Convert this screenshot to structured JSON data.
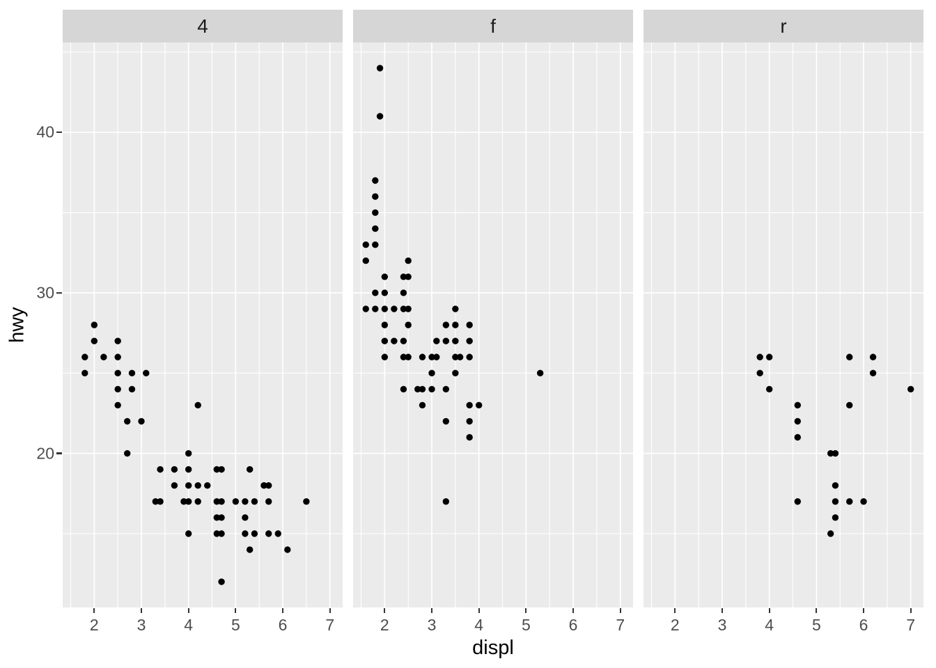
{
  "chart_data": {
    "type": "scatter",
    "title": "",
    "xlabel": "displ",
    "ylabel": "hwy",
    "facet_variable_values": [
      "4",
      "f",
      "r"
    ],
    "x_ticks": [
      2,
      3,
      4,
      5,
      6,
      7
    ],
    "y_ticks": [
      20,
      30,
      40
    ],
    "x_minor_ticks": [
      1.5,
      2.5,
      3.5,
      4.5,
      5.5,
      6.5
    ],
    "y_minor_ticks": [
      15,
      25,
      35,
      45
    ],
    "xlim": [
      1.33,
      7.27
    ],
    "ylim": [
      10.4,
      45.6
    ],
    "grid": true,
    "legend_position": "none",
    "panels": [
      {
        "label": "4",
        "points": [
          [
            1.8,
            26
          ],
          [
            1.8,
            25
          ],
          [
            2.0,
            28
          ],
          [
            2.0,
            27
          ],
          [
            2.2,
            26
          ],
          [
            2.5,
            27
          ],
          [
            2.5,
            26
          ],
          [
            2.5,
            25
          ],
          [
            2.5,
            24
          ],
          [
            2.5,
            23
          ],
          [
            2.7,
            22
          ],
          [
            2.7,
            20
          ],
          [
            2.8,
            25
          ],
          [
            2.8,
            24
          ],
          [
            3.0,
            22
          ],
          [
            3.1,
            25
          ],
          [
            3.3,
            17
          ],
          [
            3.4,
            19
          ],
          [
            3.4,
            17
          ],
          [
            3.7,
            19
          ],
          [
            3.7,
            18
          ],
          [
            3.9,
            17
          ],
          [
            4.0,
            20
          ],
          [
            4.0,
            19
          ],
          [
            4.0,
            18
          ],
          [
            4.0,
            17
          ],
          [
            4.0,
            15
          ],
          [
            4.2,
            23
          ],
          [
            4.2,
            18
          ],
          [
            4.2,
            17
          ],
          [
            4.4,
            18
          ],
          [
            4.6,
            19
          ],
          [
            4.6,
            17
          ],
          [
            4.6,
            16
          ],
          [
            4.6,
            15
          ],
          [
            4.7,
            19
          ],
          [
            4.7,
            17
          ],
          [
            4.7,
            16
          ],
          [
            4.7,
            15
          ],
          [
            4.7,
            12
          ],
          [
            5.0,
            17
          ],
          [
            5.2,
            17
          ],
          [
            5.2,
            16
          ],
          [
            5.2,
            15
          ],
          [
            5.3,
            19
          ],
          [
            5.3,
            14
          ],
          [
            5.4,
            17
          ],
          [
            5.4,
            15
          ],
          [
            5.6,
            18
          ],
          [
            5.7,
            18
          ],
          [
            5.7,
            17
          ],
          [
            5.7,
            15
          ],
          [
            5.9,
            15
          ],
          [
            6.1,
            14
          ],
          [
            6.5,
            17
          ]
        ]
      },
      {
        "label": "f",
        "points": [
          [
            1.6,
            33
          ],
          [
            1.6,
            32
          ],
          [
            1.6,
            29
          ],
          [
            1.8,
            37
          ],
          [
            1.8,
            36
          ],
          [
            1.8,
            35
          ],
          [
            1.8,
            34
          ],
          [
            1.8,
            33
          ],
          [
            1.8,
            30
          ],
          [
            1.8,
            29
          ],
          [
            1.9,
            44
          ],
          [
            1.9,
            41
          ],
          [
            2.0,
            31
          ],
          [
            2.0,
            30
          ],
          [
            2.0,
            29
          ],
          [
            2.0,
            28
          ],
          [
            2.0,
            27
          ],
          [
            2.0,
            26
          ],
          [
            2.2,
            29
          ],
          [
            2.2,
            27
          ],
          [
            2.4,
            31
          ],
          [
            2.4,
            30
          ],
          [
            2.4,
            29
          ],
          [
            2.4,
            27
          ],
          [
            2.4,
            26
          ],
          [
            2.4,
            24
          ],
          [
            2.5,
            32
          ],
          [
            2.5,
            31
          ],
          [
            2.5,
            29
          ],
          [
            2.5,
            28
          ],
          [
            2.5,
            26
          ],
          [
            2.7,
            24
          ],
          [
            2.8,
            26
          ],
          [
            2.8,
            24
          ],
          [
            2.8,
            23
          ],
          [
            3.0,
            26
          ],
          [
            3.0,
            25
          ],
          [
            3.0,
            24
          ],
          [
            3.1,
            27
          ],
          [
            3.1,
            26
          ],
          [
            3.3,
            28
          ],
          [
            3.3,
            27
          ],
          [
            3.3,
            24
          ],
          [
            3.3,
            22
          ],
          [
            3.3,
            17
          ],
          [
            3.5,
            29
          ],
          [
            3.5,
            28
          ],
          [
            3.5,
            27
          ],
          [
            3.5,
            26
          ],
          [
            3.5,
            25
          ],
          [
            3.6,
            26
          ],
          [
            3.8,
            28
          ],
          [
            3.8,
            27
          ],
          [
            3.8,
            26
          ],
          [
            3.8,
            23
          ],
          [
            3.8,
            22
          ],
          [
            3.8,
            21
          ],
          [
            4.0,
            23
          ],
          [
            5.3,
            25
          ]
        ]
      },
      {
        "label": "r",
        "points": [
          [
            3.8,
            26
          ],
          [
            3.8,
            25
          ],
          [
            4.0,
            26
          ],
          [
            4.0,
            24
          ],
          [
            4.6,
            23
          ],
          [
            4.6,
            22
          ],
          [
            4.6,
            21
          ],
          [
            4.6,
            17
          ],
          [
            5.3,
            20
          ],
          [
            5.3,
            15
          ],
          [
            5.4,
            20
          ],
          [
            5.4,
            18
          ],
          [
            5.4,
            17
          ],
          [
            5.4,
            16
          ],
          [
            5.7,
            26
          ],
          [
            5.7,
            23
          ],
          [
            5.7,
            17
          ],
          [
            6.0,
            17
          ],
          [
            6.2,
            26
          ],
          [
            6.2,
            25
          ],
          [
            7.0,
            24
          ]
        ]
      }
    ],
    "colors": {
      "point": "#000000",
      "panel_bg": "#EBEBEB",
      "strip_bg": "#D6D6D6",
      "grid": "#FFFFFF",
      "tick_label": "#4D4D4D",
      "tick_mark": "#333333",
      "axis_title": "#000000",
      "strip_text": "#1A1A1A"
    }
  }
}
